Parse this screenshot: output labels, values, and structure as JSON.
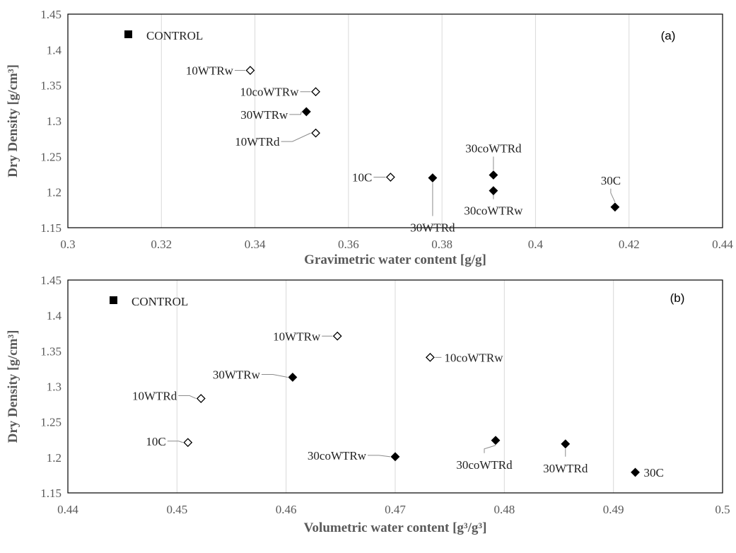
{
  "chart_data": [
    {
      "type": "scatter",
      "panel_label": "(a)",
      "xlabel": "Gravimetric water content [g/g]",
      "ylabel": "Dry Density [g/cm³]",
      "xlim": [
        0.3,
        0.44
      ],
      "ylim": [
        1.15,
        1.45
      ],
      "xticks": [
        "0.3",
        "0.32",
        "0.34",
        "0.36",
        "0.38",
        "0.4",
        "0.42",
        "0.44"
      ],
      "yticks": [
        "1.15",
        "1.2",
        "1.25",
        "1.3",
        "1.35",
        "1.4",
        "1.45"
      ],
      "grid": "vertical",
      "legend": {
        "label": "CONTROL",
        "marker": "filled-square",
        "placement": "top-left"
      },
      "points": [
        {
          "label": "10WTRw",
          "x": 0.339,
          "y": 1.371,
          "marker": "open-diamond"
        },
        {
          "label": "10coWTRw",
          "x": 0.353,
          "y": 1.341,
          "marker": "open-diamond"
        },
        {
          "label": "30WTRw",
          "x": 0.351,
          "y": 1.313,
          "marker": "filled-diamond"
        },
        {
          "label": "10WTRd",
          "x": 0.353,
          "y": 1.283,
          "marker": "open-diamond"
        },
        {
          "label": "10C",
          "x": 0.369,
          "y": 1.221,
          "marker": "open-diamond"
        },
        {
          "label": "30WTRd",
          "x": 0.378,
          "y": 1.22,
          "marker": "filled-diamond"
        },
        {
          "label": "30coWTRd",
          "x": 0.391,
          "y": 1.224,
          "marker": "filled-diamond"
        },
        {
          "label": "30coWTRw",
          "x": 0.391,
          "y": 1.202,
          "marker": "filled-diamond"
        },
        {
          "label": "30C",
          "x": 0.417,
          "y": 1.179,
          "marker": "filled-diamond"
        }
      ]
    },
    {
      "type": "scatter",
      "panel_label": "(b)",
      "xlabel": "Volumetric water content [g³/g³]",
      "ylabel": "Dry Density [g/cm³]",
      "xlim": [
        0.44,
        0.5
      ],
      "ylim": [
        1.15,
        1.45
      ],
      "xticks": [
        "0.44",
        "0.45",
        "0.46",
        "0.47",
        "0.48",
        "0.49",
        "0.5"
      ],
      "yticks": [
        "1.15",
        "1.2",
        "1.25",
        "1.3",
        "1.35",
        "1.4",
        "1.45"
      ],
      "grid": "vertical",
      "legend": {
        "label": "CONTROL",
        "marker": "filled-square",
        "placement": "top-left"
      },
      "points": [
        {
          "label": "10WTRw",
          "x": 0.4647,
          "y": 1.371,
          "marker": "open-diamond"
        },
        {
          "label": "10coWTRw",
          "x": 0.4732,
          "y": 1.341,
          "marker": "open-diamond"
        },
        {
          "label": "30WTRw",
          "x": 0.4606,
          "y": 1.313,
          "marker": "filled-diamond"
        },
        {
          "label": "10WTRd",
          "x": 0.4522,
          "y": 1.283,
          "marker": "open-diamond"
        },
        {
          "label": "10C",
          "x": 0.451,
          "y": 1.221,
          "marker": "open-diamond"
        },
        {
          "label": "30coWTRw",
          "x": 0.47,
          "y": 1.201,
          "marker": "filled-diamond"
        },
        {
          "label": "30coWTRd",
          "x": 0.4792,
          "y": 1.224,
          "marker": "filled-diamond"
        },
        {
          "label": "30WTRd",
          "x": 0.4856,
          "y": 1.219,
          "marker": "filled-diamond"
        },
        {
          "label": "30C",
          "x": 0.492,
          "y": 1.179,
          "marker": "filled-diamond"
        }
      ]
    }
  ]
}
